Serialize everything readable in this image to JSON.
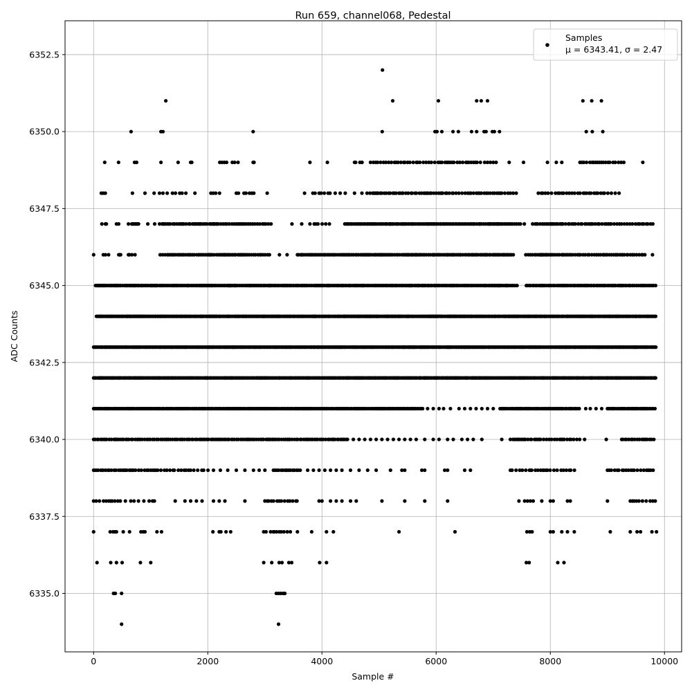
{
  "chart_data": {
    "type": "scatter",
    "title": "Run 659, channel068, Pedestal",
    "xlabel": "Sample #",
    "ylabel": "ADC Counts",
    "xlim": [
      -500,
      10300
    ],
    "ylim": [
      6333.1,
      6353.6
    ],
    "xticks": [
      0,
      2000,
      4000,
      6000,
      8000,
      10000
    ],
    "xtick_labels": [
      "0",
      "2000",
      "4000",
      "6000",
      "8000",
      "10000"
    ],
    "yticks": [
      6335.0,
      6337.5,
      6340.0,
      6342.5,
      6345.0,
      6347.5,
      6350.0,
      6352.5
    ],
    "ytick_labels": [
      "6335.0",
      "6337.5",
      "6340.0",
      "6342.5",
      "6345.0",
      "6347.5",
      "6350.0",
      "6352.5"
    ],
    "grid": true,
    "legend": {
      "placement": "top-right",
      "label": "Samples",
      "stats": "μ = 6343.41, σ = 2.47"
    },
    "marker_color": "#000000",
    "series": [
      {
        "y": 6352,
        "segments": [],
        "points": [
          5060
        ]
      },
      {
        "y": 6351,
        "segments": [],
        "points": [
          1265,
          5240,
          6040,
          6710,
          6790,
          6900,
          8570,
          8725,
          8895
        ]
      },
      {
        "y": 6350,
        "segments": [],
        "points": [
          656,
          1180,
          1215,
          2795,
          5055,
          5980,
          6015,
          6100,
          6295,
          6390,
          6620,
          6710,
          6840,
          6875,
          6985,
          7020,
          7110,
          8630,
          8735,
          8920
        ]
      },
      {
        "y": 6349,
        "segments": [
          [
            4570,
            4725,
            50
          ],
          [
            4850,
            6790,
            40
          ],
          [
            8520,
            9310,
            40
          ]
        ],
        "points": [
          195,
          437,
          717,
          753,
          1180,
          1480,
          1700,
          1720,
          2210,
          2250,
          2290,
          2330,
          2430,
          2470,
          2530,
          2795,
          2810,
          3790,
          4095,
          6850,
          6900,
          6950,
          7000,
          7050,
          7280,
          7530,
          7950,
          8105,
          8200,
          9620
        ]
      },
      {
        "y": 6348,
        "segments": [
          [
            1155,
            1650,
            60
          ],
          [
            2055,
            2235,
            50
          ],
          [
            2500,
            2890,
            70
          ],
          [
            3840,
            4450,
            60
          ],
          [
            4790,
            7420,
            35
          ],
          [
            7790,
            9220,
            45
          ]
        ],
        "points": [
          135,
          170,
          205,
          680,
          900,
          1060,
          1775,
          3040,
          3695,
          4570,
          4700
        ]
      },
      {
        "y": 6347,
        "segments": [
          [
            145,
            230,
            40
          ],
          [
            400,
            475,
            35
          ],
          [
            610,
            790,
            40
          ],
          [
            1155,
            3110,
            30
          ],
          [
            3865,
            4205,
            50
          ],
          [
            4400,
            7485,
            25
          ],
          [
            7690,
            9840,
            35
          ]
        ],
        "points": [
          950,
          1070,
          3475,
          3645,
          3790,
          7545
        ]
      },
      {
        "y": 6346,
        "segments": [
          [
            170,
            265,
            40
          ],
          [
            440,
            490,
            30
          ],
          [
            610,
            765,
            40
          ],
          [
            1165,
            3110,
            30
          ],
          [
            3570,
            7365,
            25
          ],
          [
            7570,
            9670,
            30
          ]
        ],
        "points": [
          0,
          3255,
          3390,
          9790
        ]
      },
      {
        "y": 6345,
        "segments": [
          [
            35,
            7425,
            22
          ],
          [
            7580,
            9850,
            25
          ]
        ],
        "points": []
      },
      {
        "y": 6344,
        "segments": [
          [
            50,
            9850,
            20
          ]
        ],
        "points": []
      },
      {
        "y": 6343,
        "segments": [
          [
            0,
            9850,
            18
          ]
        ],
        "points": []
      },
      {
        "y": 6342,
        "segments": [
          [
            0,
            9850,
            20
          ]
        ],
        "points": []
      },
      {
        "y": 6341,
        "segments": [
          [
            0,
            5780,
            22
          ],
          [
            7120,
            8520,
            25
          ],
          [
            9000,
            9850,
            25
          ]
        ],
        "points": [
          5850,
          5950,
          6050,
          6130,
          6250,
          6400,
          6500,
          6600,
          6700,
          6800,
          6900,
          7000,
          8620,
          8700,
          8800,
          8900
        ]
      },
      {
        "y": 6340,
        "segments": [
          [
            0,
            4450,
            30
          ],
          [
            7300,
            8520,
            35
          ],
          [
            9250,
            9850,
            30
          ]
        ],
        "points": [
          4550,
          4650,
          4750,
          4850,
          4950,
          5050,
          5150,
          5250,
          5350,
          5450,
          5550,
          5650,
          5800,
          5950,
          6050,
          6200,
          6300,
          6450,
          6550,
          6650,
          6800,
          7150,
          8600,
          8980
        ]
      },
      {
        "y": 6339,
        "segments": [
          [
            0,
            740,
            30
          ],
          [
            790,
            2020,
            50
          ],
          [
            3150,
            3650,
            30
          ],
          [
            7300,
            8450,
            45
          ],
          [
            9000,
            9850,
            40
          ]
        ],
        "points": [
          2100,
          2220,
          2350,
          2500,
          2650,
          2800,
          2900,
          3000,
          3750,
          3850,
          3950,
          4050,
          4150,
          4250,
          4350,
          4500,
          4650,
          4800,
          4950,
          5200,
          5400,
          5450,
          5750,
          5800,
          6150,
          6200,
          6500,
          6600
        ]
      },
      {
        "y": 6338,
        "segments": [
          [
            0,
            1105,
            60
          ],
          [
            3000,
            3600,
            40
          ],
          [
            9400,
            9850,
            45
          ]
        ],
        "points": [
          1430,
          1600,
          1700,
          1800,
          1900,
          2100,
          2200,
          2300,
          2650,
          3950,
          4000,
          4150,
          4250,
          4350,
          4500,
          4600,
          5050,
          5450,
          5800,
          6200,
          7450,
          7550,
          7600,
          7650,
          7700,
          7850,
          8000,
          8050,
          8300,
          8350,
          9000
        ]
      },
      {
        "y": 6337,
        "segments": [
          [
            3100,
            3450,
            40
          ]
        ],
        "points": [
          0,
          290,
          340,
          370,
          400,
          520,
          630,
          830,
          870,
          900,
          1110,
          1190,
          2090,
          2200,
          2230,
          2320,
          2400,
          2980,
          3020,
          3570,
          3820,
          4080,
          4200,
          5350,
          6330,
          7590,
          7640,
          7680,
          8000,
          8050,
          8200,
          8300,
          8420,
          9050,
          9400,
          9520,
          9580,
          9780,
          9860
        ]
      },
      {
        "y": 6336,
        "segments": [],
        "points": [
          60,
          300,
          400,
          500,
          820,
          1000,
          2980,
          3120,
          3250,
          3300,
          3420,
          3470,
          3960,
          4080,
          7580,
          7630,
          8130,
          8240
        ]
      },
      {
        "y": 6335,
        "segments": [],
        "points": [
          350,
          380,
          490,
          3200,
          3240,
          3280,
          3320,
          3350
        ]
      },
      {
        "y": 6334,
        "segments": [],
        "points": [
          490,
          3240
        ]
      }
    ]
  }
}
